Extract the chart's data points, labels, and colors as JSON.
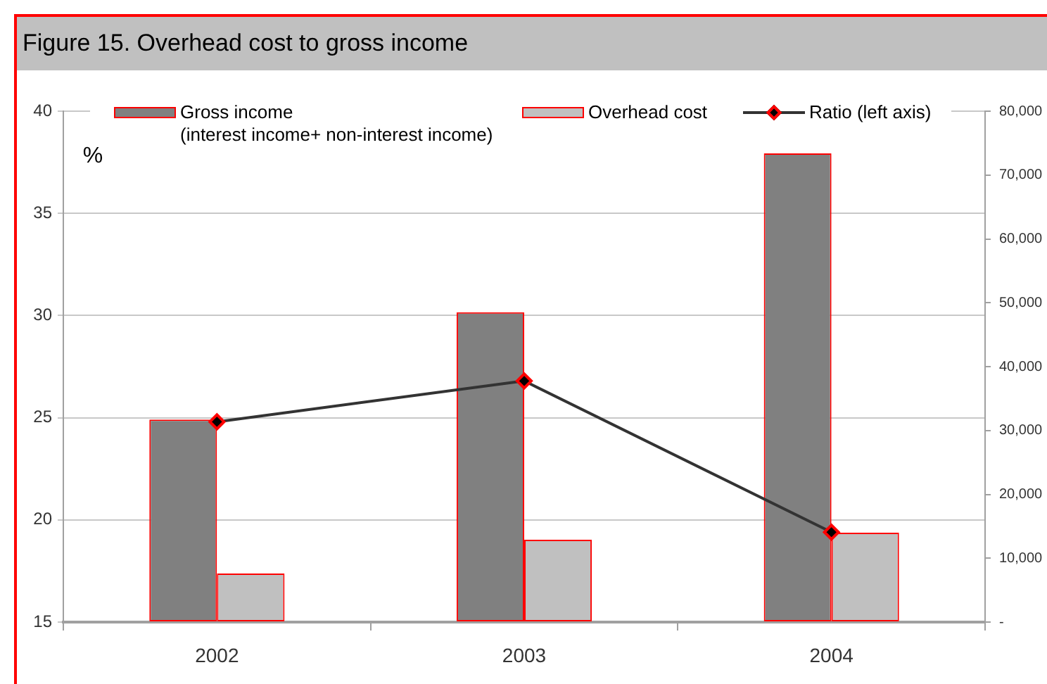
{
  "chart_data": {
    "type": "bar",
    "title": "Figure 15. Overhead cost to gross income",
    "ylabel": "%",
    "categories": [
      "2002",
      "2003",
      "2004"
    ],
    "series": [
      {
        "name": "Gross income\n(interest income+ non-interest income)",
        "axis": "y2",
        "color": "#808080",
        "values": [
          31700,
          48500,
          73400
        ]
      },
      {
        "name": "Overhead cost",
        "axis": "y2",
        "color": "#c0c0c0",
        "values": [
          7600,
          12900,
          14000
        ]
      },
      {
        "name": "Ratio (left axis)",
        "type": "line",
        "color": "#333333",
        "values": [
          24.8,
          26.8,
          19.4
        ]
      }
    ],
    "ylim": [
      15,
      40
    ],
    "yticks": [
      15,
      20,
      25,
      30,
      35,
      40
    ],
    "y2lim": [
      0,
      80000
    ],
    "y2ticks": [
      {
        "value": 0,
        "label": "-"
      },
      {
        "value": 10000,
        "label": "10,000"
      },
      {
        "value": 20000,
        "label": "20,000"
      },
      {
        "value": 30000,
        "label": "30,000"
      },
      {
        "value": 40000,
        "label": "40,000"
      },
      {
        "value": 50000,
        "label": "50,000"
      },
      {
        "value": 60000,
        "label": "60,000"
      },
      {
        "value": 70000,
        "label": "70,000"
      },
      {
        "value": 80000,
        "label": "80,000"
      }
    ],
    "grid": "y",
    "legend": "top",
    "marker": "diamond"
  }
}
